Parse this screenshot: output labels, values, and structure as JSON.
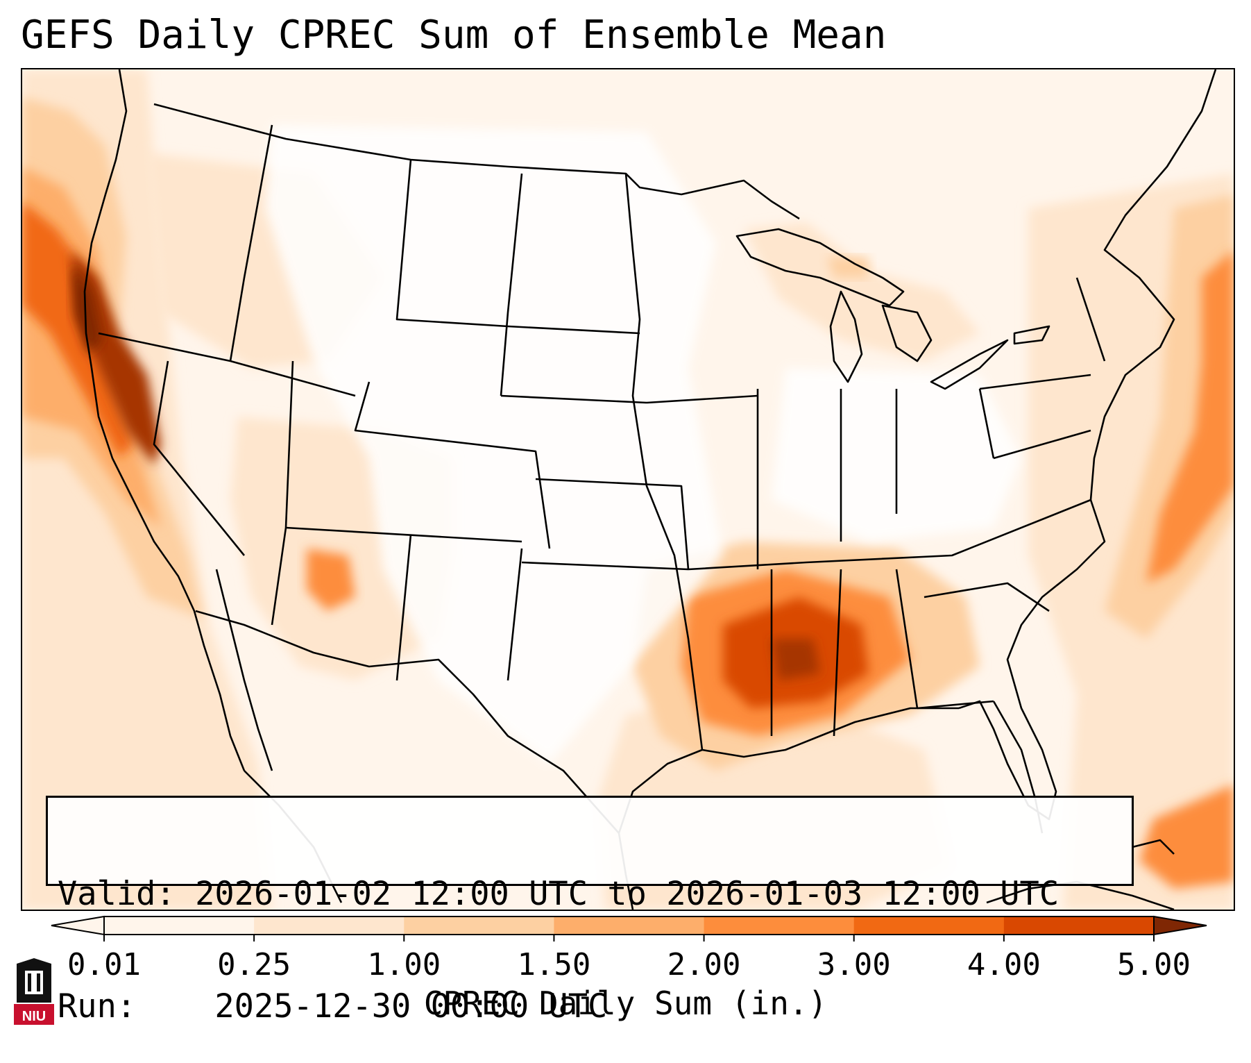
{
  "title": "GEFS Daily CPREC Sum of Ensemble Mean",
  "info": {
    "valid_label": "Valid:",
    "valid_value": "2026-01-02 12:00 UTC to 2026-01-03 12:00 UTC",
    "run_label": "Run:",
    "run_value": "2025-12-30 00:00 UTC"
  },
  "colorbar": {
    "label": "CPREC Daily Sum (in.)",
    "ticks": [
      "0.01",
      "0.25",
      "1.00",
      "1.50",
      "2.00",
      "3.00",
      "4.00",
      "5.00"
    ],
    "colors": [
      "#fff5eb",
      "#fee6ce",
      "#fdd0a2",
      "#fdae6b",
      "#fd8d3c",
      "#f16913",
      "#d94801",
      "#a63603",
      "#7f2704"
    ]
  },
  "logo": {
    "text": "NIU"
  }
}
